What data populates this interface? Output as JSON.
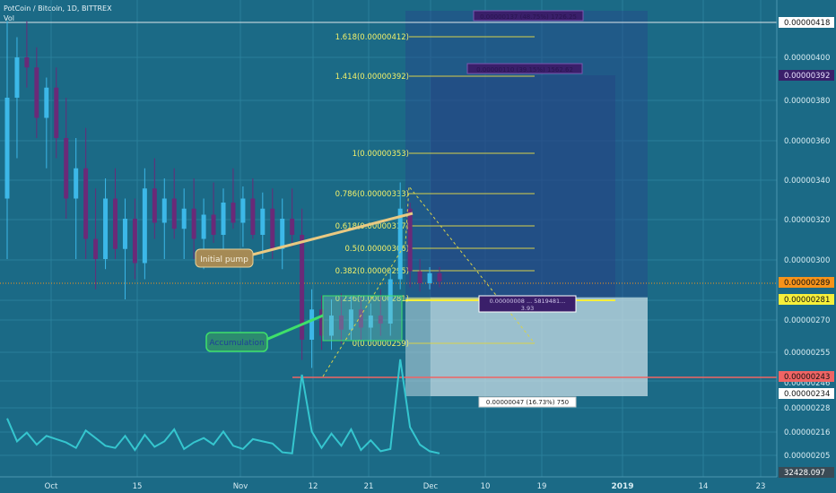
{
  "header": {
    "symbol_line": "PotCoin / Bitcoin, 1D, BITTREX",
    "vol_label": "Vol"
  },
  "colors": {
    "background": "#1b6a86",
    "bull": "#3cb8e8",
    "bear": "#6a2a78",
    "fib_line": "#d8d24a",
    "fib_text": "#f2f06a",
    "volume_line": "#35c6cf",
    "support_line": "#f06464",
    "price_line": "#f7931a"
  },
  "price_axis": {
    "ticks": [
      "0.00000400",
      "0.00000380",
      "0.00000360",
      "0.00000340",
      "0.00000320",
      "0.00000300",
      "0.00000270",
      "0.00000255",
      "0.00000228",
      "0.00000216",
      "0.00000205"
    ],
    "tick_values": [
      400,
      380,
      360,
      340,
      320,
      300,
      270,
      255,
      228,
      216,
      205
    ],
    "extra_ticks": [
      "0.00000246"
    ],
    "badges": [
      {
        "text": "0.00000418",
        "value": 418,
        "style": "white"
      },
      {
        "text": "0.00000392",
        "value": 392,
        "style": "purple"
      },
      {
        "text": "0.00000289",
        "value": 289,
        "style": "orange"
      },
      {
        "text": "0.00000281",
        "value": 281,
        "style": "yellow"
      },
      {
        "text": "0.00000243",
        "value": 243,
        "style": "red"
      },
      {
        "text": "0.00000234",
        "value": 234,
        "style": "white"
      },
      {
        "text": "32428.097",
        "value": 197,
        "style": "grey"
      }
    ]
  },
  "time_axis": {
    "labels": [
      "Oct",
      "15",
      "Nov",
      "12",
      "21",
      "Dec",
      "10",
      "19",
      "2019",
      "14",
      "23"
    ]
  },
  "fib_levels": [
    {
      "label": "1.618(0.00000412)",
      "value": 412
    },
    {
      "label": "1.414(0.00000392)",
      "value": 392
    },
    {
      "label": "1(0.00000353)",
      "value": 353
    },
    {
      "label": "0.786(0.00000333)",
      "value": 333
    },
    {
      "label": "0.618(0.00000317)",
      "value": 317
    },
    {
      "label": "0.5(0.00000306)",
      "value": 306
    },
    {
      "label": "0.382(0.00000295)",
      "value": 295
    },
    {
      "label": "0.236(0.00000281)",
      "value": 281
    },
    {
      "label": "0(0.00000259)",
      "value": 259
    }
  ],
  "annotations": {
    "initial_pump": "Initial pump",
    "accumulation": "Accumulation",
    "target1_box": "0.00000137 (48.75%) 1726.25",
    "target2_box": "0.00000110 (39.15%) 1562.62",
    "entry_box_line1": "0.00000008 ... 5819481...",
    "entry_box_line2": "3.93",
    "stop_box": "0.00000047 (16.73%) 750"
  },
  "chart_data": {
    "type": "candlestick",
    "title": "PotCoin / Bitcoin, 1D, BITTREX",
    "ylim": [
      1.97e-06,
      4.2e-06
    ],
    "last_price": 2.89e-06,
    "series": [
      {
        "name": "Price",
        "candles": [
          [
            330,
            418,
            300,
            380
          ],
          [
            380,
            410,
            350,
            400
          ],
          [
            400,
            418,
            385,
            395
          ],
          [
            395,
            405,
            360,
            370
          ],
          [
            370,
            390,
            345,
            385
          ],
          [
            385,
            395,
            350,
            360
          ],
          [
            360,
            380,
            320,
            330
          ],
          [
            330,
            360,
            300,
            345
          ],
          [
            345,
            365,
            300,
            310
          ],
          [
            310,
            335,
            285,
            300
          ],
          [
            300,
            340,
            295,
            330
          ],
          [
            330,
            345,
            300,
            305
          ],
          [
            305,
            330,
            280,
            320
          ],
          [
            320,
            330,
            290,
            298
          ],
          [
            298,
            345,
            290,
            335
          ],
          [
            335,
            350,
            310,
            318
          ],
          [
            318,
            340,
            300,
            330
          ],
          [
            330,
            345,
            310,
            315
          ],
          [
            315,
            335,
            300,
            325
          ],
          [
            325,
            340,
            300,
            310
          ],
          [
            310,
            330,
            295,
            322
          ],
          [
            322,
            338,
            308,
            312
          ],
          [
            312,
            335,
            300,
            328
          ],
          [
            328,
            345,
            315,
            318
          ],
          [
            318,
            336,
            306,
            330
          ],
          [
            330,
            340,
            310,
            312
          ],
          [
            312,
            333,
            300,
            325
          ],
          [
            325,
            335,
            300,
            305
          ],
          [
            305,
            330,
            295,
            320
          ],
          [
            320,
            335,
            306,
            312
          ],
          [
            312,
            325,
            250,
            260
          ],
          [
            260,
            285,
            246,
            275
          ],
          [
            275,
            282,
            255,
            262
          ],
          [
            262,
            280,
            255,
            272
          ],
          [
            272,
            283,
            258,
            265
          ],
          [
            265,
            282,
            260,
            275
          ],
          [
            275,
            281,
            260,
            266
          ],
          [
            266,
            278,
            259,
            272
          ],
          [
            272,
            285,
            262,
            268
          ],
          [
            268,
            295,
            262,
            290
          ],
          [
            290,
            338,
            285,
            325
          ],
          [
            325,
            328,
            286,
            294
          ],
          [
            294,
            300,
            284,
            288
          ],
          [
            288,
            296,
            285,
            293
          ],
          [
            293,
            296,
            286,
            289
          ]
        ]
      },
      {
        "name": "Vol",
        "values": [
          4200,
          2100,
          2900,
          1800,
          2600,
          2300,
          2000,
          1500,
          3100,
          2400,
          1700,
          1500,
          2600,
          1300,
          2700,
          1600,
          2100,
          3200,
          1400,
          2000,
          2400,
          1800,
          3000,
          1700,
          1400,
          2300,
          2100,
          1900,
          1100,
          1000,
          8200,
          3000,
          1500,
          2800,
          1700,
          3200,
          1300,
          2200,
          1200,
          1400,
          9600,
          3400,
          1800,
          1200,
          1000
        ]
      }
    ],
    "xlabel": "",
    "ylabel": ""
  }
}
